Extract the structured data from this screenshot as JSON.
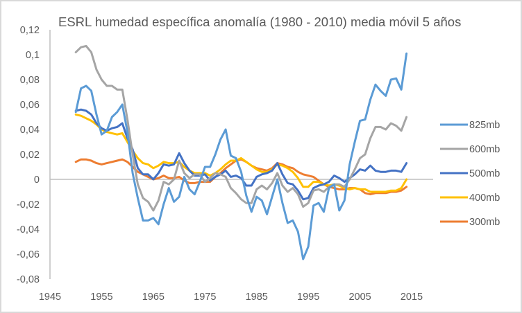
{
  "chart_data": {
    "type": "line",
    "title": "ESRL humedad específica anomalía (1980 - 2010) media móvil 5 años",
    "xlabel": "",
    "ylabel": "",
    "xlim": [
      1945,
      2015
    ],
    "ylim": [
      -0.08,
      0.12
    ],
    "x_ticks": [
      "1945",
      "1955",
      "1965",
      "1975",
      "1985",
      "1995",
      "2005",
      "2015"
    ],
    "x_tick_values": [
      1945,
      1955,
      1965,
      1975,
      1985,
      1995,
      2005,
      2015
    ],
    "y_ticks": [
      "0,12",
      "0,1",
      "0,08",
      "0,06",
      "0,04",
      "0,02",
      "0",
      "-0,02",
      "-0,04",
      "-0,06",
      "-0,08"
    ],
    "y_tick_values": [
      0.12,
      0.1,
      0.08,
      0.06,
      0.04,
      0.02,
      0,
      -0.02,
      -0.04,
      -0.06,
      -0.08
    ],
    "grid": false,
    "legend_position": "right",
    "x_start": 1950,
    "series": [
      {
        "name": "825mb",
        "color": "#5b9bd5",
        "values": [
          0.054,
          0.073,
          0.075,
          0.071,
          0.052,
          0.036,
          0.039,
          0.05,
          0.054,
          0.06,
          0.038,
          0.005,
          -0.015,
          -0.033,
          -0.033,
          -0.031,
          -0.036,
          -0.02,
          -0.007,
          -0.018,
          -0.014,
          0.002,
          -0.008,
          -0.012,
          -0.002,
          0.01,
          0.01,
          0.02,
          0.032,
          0.04,
          0.019,
          0.017,
          0.006,
          -0.013,
          -0.026,
          -0.014,
          -0.017,
          -0.028,
          -0.014,
          0.0,
          -0.019,
          -0.035,
          -0.033,
          -0.042,
          -0.064,
          -0.054,
          -0.021,
          -0.019,
          -0.026,
          -0.007,
          -0.004,
          -0.025,
          -0.017,
          0.012,
          0.03,
          0.047,
          0.048,
          0.064,
          0.076,
          0.071,
          0.067,
          0.08,
          0.081,
          0.072,
          0.101
        ]
      },
      {
        "name": "600mb",
        "color": "#a5a5a5",
        "values": [
          0.102,
          0.106,
          0.107,
          0.102,
          0.088,
          0.08,
          0.075,
          0.075,
          0.072,
          0.072,
          0.048,
          0.02,
          -0.004,
          -0.015,
          -0.018,
          -0.025,
          -0.017,
          -0.002,
          -0.004,
          0.0,
          0.015,
          0.005,
          0.001,
          0.004,
          0.004,
          -0.002,
          0.001,
          0.005,
          0.004,
          0.002,
          -0.007,
          -0.011,
          -0.016,
          -0.019,
          -0.019,
          -0.008,
          -0.005,
          -0.008,
          -0.003,
          0.005,
          -0.005,
          -0.01,
          -0.007,
          -0.012,
          -0.022,
          -0.019,
          -0.009,
          -0.008,
          -0.01,
          -0.006,
          -0.004,
          -0.004,
          -0.006,
          0.0,
          0.008,
          0.017,
          0.02,
          0.033,
          0.042,
          0.042,
          0.04,
          0.045,
          0.043,
          0.039,
          0.05
        ]
      },
      {
        "name": "500mb",
        "color": "#4472c4",
        "values": [
          0.055,
          0.056,
          0.055,
          0.052,
          0.045,
          0.041,
          0.039,
          0.041,
          0.042,
          0.045,
          0.033,
          0.024,
          0.009,
          0.004,
          0.004,
          0.0,
          0.005,
          0.012,
          0.011,
          0.012,
          0.021,
          0.013,
          0.007,
          0.003,
          0.003,
          0.004,
          -0.001,
          0.002,
          0.004,
          0.007,
          0.002,
          0.003,
          0.001,
          -0.005,
          -0.005,
          0.002,
          0.004,
          0.005,
          0.007,
          0.013,
          0.004,
          -0.003,
          -0.004,
          -0.009,
          -0.016,
          -0.015,
          -0.007,
          -0.005,
          -0.004,
          -0.002,
          0.003,
          0.001,
          -0.002,
          0.001,
          0.004,
          0.008,
          0.007,
          0.011,
          0.007,
          0.006,
          0.006,
          0.007,
          0.007,
          0.006,
          0.013
        ]
      },
      {
        "name": "400mb",
        "color": "#ffc000",
        "values": [
          0.052,
          0.051,
          0.049,
          0.047,
          0.044,
          0.04,
          0.038,
          0.037,
          0.036,
          0.037,
          0.03,
          0.023,
          0.017,
          0.013,
          0.012,
          0.009,
          0.011,
          0.014,
          0.013,
          0.013,
          0.014,
          0.01,
          0.007,
          0.005,
          0.005,
          0.005,
          0.003,
          0.005,
          0.008,
          0.012,
          0.015,
          0.015,
          0.017,
          0.014,
          0.011,
          0.008,
          0.006,
          0.006,
          0.008,
          0.012,
          0.011,
          0.009,
          0.006,
          0.001,
          -0.006,
          -0.006,
          -0.002,
          -0.002,
          -0.004,
          -0.005,
          -0.004,
          -0.005,
          -0.007,
          -0.008,
          -0.007,
          -0.008,
          -0.008,
          -0.01,
          -0.01,
          -0.01,
          -0.01,
          -0.009,
          -0.009,
          -0.007,
          0.0
        ]
      },
      {
        "name": "300mb",
        "color": "#ed7d31",
        "values": [
          0.014,
          0.016,
          0.016,
          0.015,
          0.013,
          0.012,
          0.013,
          0.014,
          0.015,
          0.016,
          0.014,
          0.01,
          0.006,
          0.004,
          0.002,
          0.0,
          0.001,
          0.003,
          0.001,
          0.001,
          0.002,
          -0.001,
          -0.003,
          -0.003,
          -0.002,
          -0.002,
          -0.002,
          0.002,
          0.005,
          0.009,
          0.012,
          0.015,
          0.016,
          0.014,
          0.011,
          0.009,
          0.008,
          0.007,
          0.009,
          0.013,
          0.012,
          0.01,
          0.009,
          0.006,
          0.004,
          0.003,
          0.002,
          -0.001,
          -0.004,
          -0.006,
          -0.007,
          -0.008,
          -0.008,
          -0.007,
          -0.007,
          -0.008,
          -0.011,
          -0.012,
          -0.011,
          -0.011,
          -0.011,
          -0.01,
          -0.01,
          -0.009,
          -0.006
        ]
      }
    ]
  }
}
